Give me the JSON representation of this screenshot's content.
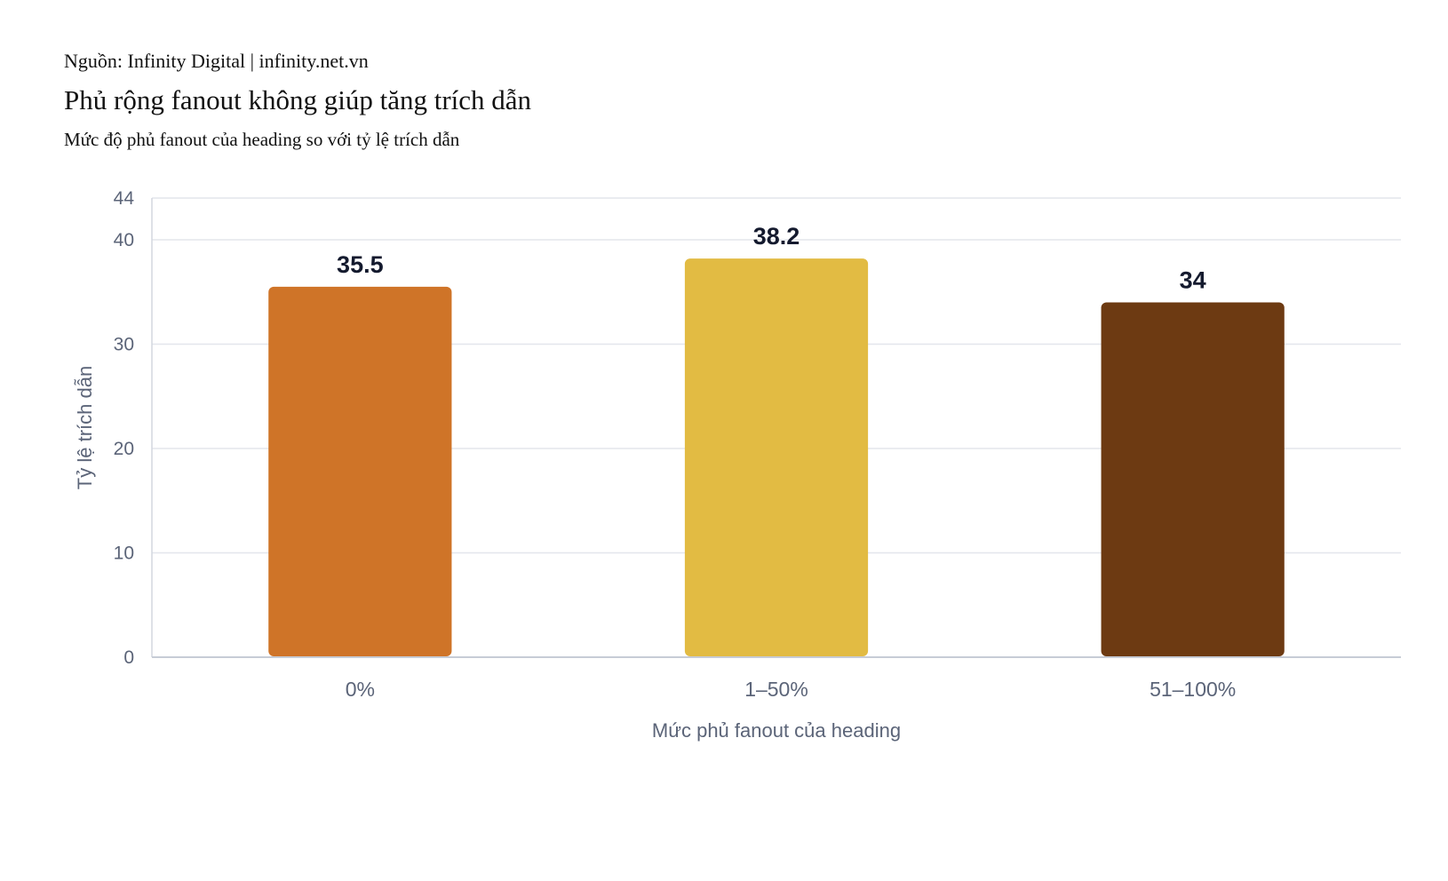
{
  "header": {
    "source": "Nguồn: Infinity Digital | infinity.net.vn",
    "title": "Phủ rộng fanout không giúp tăng trích dẫn",
    "subtitle": "Mức độ phủ fanout của heading so với tỷ lệ trích dẫn"
  },
  "chart_data": {
    "type": "bar",
    "title": "Phủ rộng fanout không giúp tăng trích dẫn",
    "subtitle": "Mức độ phủ fanout của heading so với tỷ lệ trích dẫn",
    "categories": [
      "0%",
      "1–50%",
      "51–100%"
    ],
    "values": [
      35.5,
      38.2,
      34
    ],
    "value_labels": [
      "35.5",
      "38.2",
      "34"
    ],
    "colors": [
      "#cf7428",
      "#e2bb43",
      "#6d3a12"
    ],
    "xlabel": "Mức phủ fanout của heading",
    "ylabel": "Tỷ lệ trích dẫn",
    "ylim": [
      0,
      44
    ],
    "yticks": [
      0,
      10,
      20,
      30,
      40,
      44
    ],
    "grid": true,
    "legend": "none"
  }
}
